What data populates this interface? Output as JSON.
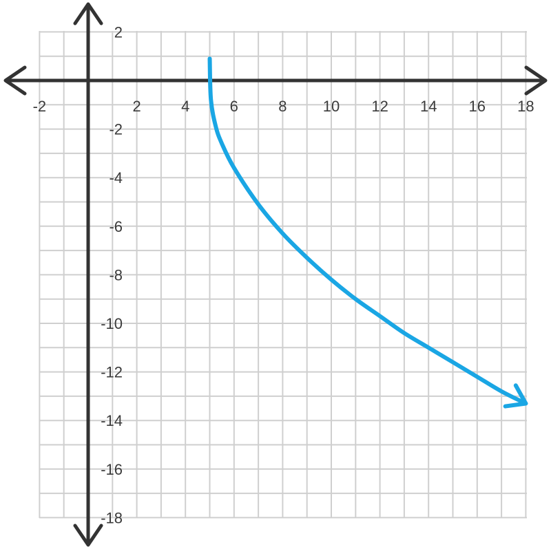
{
  "chart_data": {
    "type": "line",
    "title": "",
    "xlabel": "",
    "ylabel": "",
    "xlim": [
      -2,
      18
    ],
    "ylim": [
      -18,
      2
    ],
    "grid": true,
    "grid_step": 1,
    "x_ticks": [
      -2,
      2,
      4,
      6,
      8,
      10,
      12,
      14,
      16,
      18
    ],
    "y_ticks": [
      2,
      -2,
      -4,
      -6,
      -8,
      -10,
      -12,
      -14,
      -16,
      -18
    ],
    "x_tick_labels": [
      "-2",
      "2",
      "4",
      "6",
      "8",
      "10",
      "12",
      "14",
      "16",
      "18"
    ],
    "y_tick_labels": [
      "2",
      "-2",
      "-4",
      "-6",
      "-8",
      "-10",
      "-12",
      "-14",
      "-16",
      "-18"
    ],
    "axis_arrows": true,
    "series": [
      {
        "color": "#1aa6e4",
        "end_arrow": true,
        "points": [
          [
            5,
            0.9
          ],
          [
            5.05,
            -0.8
          ],
          [
            5.25,
            -1.9
          ],
          [
            5.5,
            -2.6
          ],
          [
            6,
            -3.6
          ],
          [
            7,
            -5.1
          ],
          [
            8,
            -6.3
          ],
          [
            9,
            -7.3
          ],
          [
            10,
            -8.2
          ],
          [
            11,
            -9.0
          ],
          [
            12,
            -9.7
          ],
          [
            13,
            -10.4
          ],
          [
            14,
            -11.0
          ],
          [
            15,
            -11.6
          ],
          [
            16,
            -12.2
          ],
          [
            17,
            -12.8
          ],
          [
            18,
            -13.3
          ]
        ]
      }
    ]
  },
  "colors": {
    "grid": "#cfcfcf",
    "axis": "#333333",
    "curve": "#1aa6e4"
  }
}
